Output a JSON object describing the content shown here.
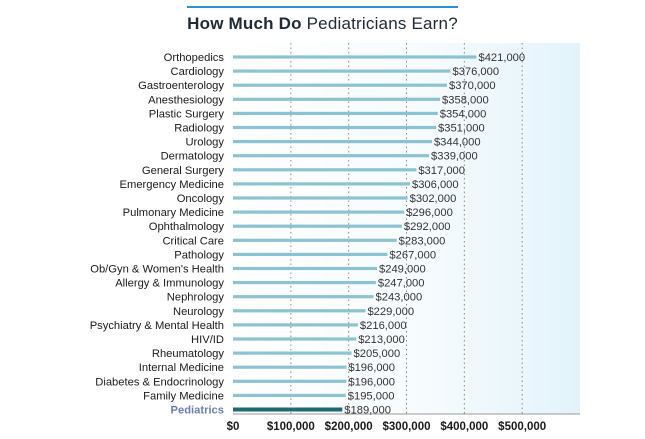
{
  "chart_data": {
    "type": "bar",
    "orientation": "horizontal",
    "title": "How Much Do Pediatricians Earn?",
    "title_bold_part": "How Much Do",
    "title_regular_part": " Pediatricians Earn?",
    "categories": [
      "Orthopedics",
      "Cardiology",
      "Gastroenterology",
      "Anesthesiology",
      "Plastic Surgery",
      "Radiology",
      "Urology",
      "Dermatology",
      "General Surgery",
      "Emergency Medicine",
      "Oncology",
      "Pulmonary Medicine",
      "Ophthalmology",
      "Critical Care",
      "Pathology",
      "Ob/Gyn & Women's Health",
      "Allergy & Immunology",
      "Nephrology",
      "Neurology",
      "Psychiatry & Mental Health",
      "HIV/ID",
      "Rheumatology",
      "Internal Medicine",
      "Diabetes & Endocrinology",
      "Family Medicine",
      "Pediatrics"
    ],
    "values": [
      421000,
      376000,
      370000,
      358000,
      354000,
      351000,
      344000,
      339000,
      317000,
      306000,
      302000,
      296000,
      292000,
      283000,
      267000,
      249000,
      247000,
      243000,
      229000,
      216000,
      213000,
      205000,
      196000,
      196000,
      195000,
      189000
    ],
    "data_labels": [
      "$421,000",
      "$376,000",
      "$370,000",
      "$358,000",
      "$354,000",
      "$351,000",
      "$344,000",
      "$339,000",
      "$317,000",
      "$306,000",
      "$302,000",
      "$296,000",
      "$292,000",
      "$283,000",
      "$267,000",
      "$249,000",
      "$247,000",
      "$243,000",
      "$229,000",
      "$216,000",
      "$213,000",
      "$205,000",
      "$196,000",
      "$196,000",
      "$195,000",
      "$189,000"
    ],
    "highlight_category": "Pediatrics",
    "xlim": [
      0,
      600000
    ],
    "xticks": [
      0,
      100000,
      200000,
      300000,
      400000,
      500000
    ],
    "xtick_labels": [
      "$0",
      "$100,000",
      "$200,000",
      "$300,000",
      "$400,000",
      "$500,000"
    ],
    "grid": true,
    "colors": {
      "bar": "#8cc3d2",
      "bar_highlight": "#1b6b74",
      "label_highlight": "#6d7fb2",
      "plot_bg_start": "#ffffff",
      "plot_bg_end": "#e3f3fb",
      "grid": "#8a8a8a",
      "text": "#1a1a1a",
      "value_label": "#333333",
      "title_rule": "#2c8fd6"
    }
  }
}
